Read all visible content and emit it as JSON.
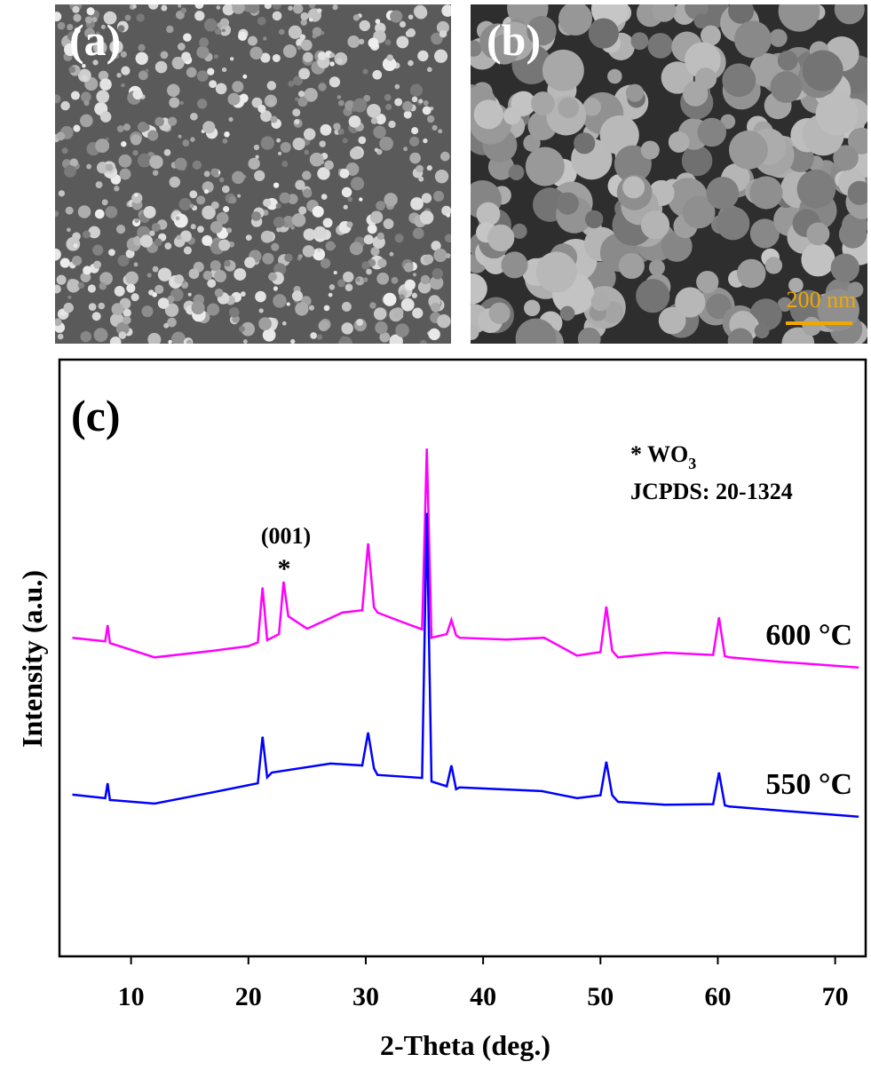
{
  "panels": {
    "a": {
      "label": "(a)"
    },
    "b": {
      "label": "(b)",
      "scale_bar": "200 nm"
    }
  },
  "chart_data": {
    "type": "line",
    "panel_label": "(c)",
    "x_label": "2-Theta (deg.)",
    "y_label": "Intensity (a.u.)",
    "xlim": [
      3.9,
      72.6
    ],
    "xticks": [
      10,
      20,
      30,
      40,
      50,
      60,
      70
    ],
    "ylim": [
      0,
      100
    ],
    "annotations": {
      "phase": "* WO",
      "phase_subscript": "3",
      "card": "JCPDS: 20-1324",
      "plane": "(001)",
      "star": "*"
    },
    "series": [
      {
        "name": "600 °C",
        "color": "#ff00ff",
        "x": [
          5,
          7.8,
          8,
          8.2,
          12,
          17,
          20,
          20.8,
          21.2,
          21.6,
          22,
          22.6,
          23,
          23.4,
          25,
          28,
          29.7,
          30.2,
          30.7,
          31,
          33,
          34.8,
          35.2,
          35.6,
          36.9,
          37.3,
          37.7,
          38,
          42,
          45.2,
          48,
          50,
          50.5,
          51,
          51.5,
          55.5,
          59.6,
          60.1,
          60.6,
          61,
          65,
          72
        ],
        "values": [
          53.4,
          52.8,
          55.5,
          52.5,
          50.1,
          51.2,
          52,
          52.6,
          61.8,
          53,
          53.4,
          54,
          62.8,
          57,
          54.9,
          57.6,
          58,
          69.2,
          58.5,
          57.6,
          56.1,
          54.8,
          85.1,
          53.4,
          54,
          56.4,
          53.8,
          53.4,
          53.1,
          53.4,
          50.4,
          51,
          58.6,
          51.2,
          50.1,
          50.9,
          50.5,
          56.8,
          50.3,
          50.1,
          49.4,
          48.4
        ]
      },
      {
        "name": "550 °C",
        "color": "#0000ff",
        "x": [
          5,
          7.8,
          8,
          8.2,
          12,
          17,
          20.8,
          21.2,
          21.6,
          22,
          27,
          29.7,
          30.2,
          30.7,
          31,
          34.8,
          35.2,
          35.6,
          36.9,
          37.3,
          37.7,
          38,
          45,
          48,
          50,
          50.5,
          51,
          51.5,
          55.5,
          59.6,
          60.1,
          60.6,
          61,
          72
        ],
        "values": [
          27.1,
          26.5,
          29,
          26.2,
          25.6,
          27.5,
          29,
          36.8,
          30,
          30.8,
          32.3,
          32,
          37.5,
          31.5,
          30.4,
          29.9,
          74.3,
          29.3,
          28.5,
          32,
          28,
          28.3,
          27.7,
          26.5,
          27,
          32.6,
          27,
          25.9,
          25.4,
          25.5,
          30.8,
          25.3,
          25.1,
          23.4
        ]
      }
    ]
  }
}
